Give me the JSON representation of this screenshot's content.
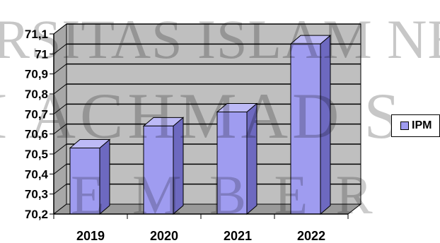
{
  "chart_data": {
    "type": "bar",
    "categories": [
      "2019",
      "2020",
      "2021",
      "2022"
    ],
    "series": [
      {
        "name": "IPM",
        "values": [
          70.53,
          70.64,
          70.71,
          71.05
        ]
      }
    ],
    "ylim": [
      70.2,
      71.1
    ],
    "yticks": [
      "70,2",
      "70,3",
      "70,4",
      "70,5",
      "70,6",
      "70,7",
      "70,8",
      "70,9",
      "71",
      "71,1"
    ],
    "title": "",
    "xlabel": "",
    "ylabel": "",
    "grid": true,
    "legend_position": "right",
    "bar_style": "3d",
    "colors": {
      "bar_front": "#9f9cf0",
      "bar_side": "#6d69c0",
      "bar_top": "#bdbaf6",
      "wall": "#bfbfbf"
    }
  },
  "watermark": {
    "lines": [
      "RSITAS ISLAM NEG",
      "I ACHMAD S",
      "E M B E R"
    ]
  }
}
